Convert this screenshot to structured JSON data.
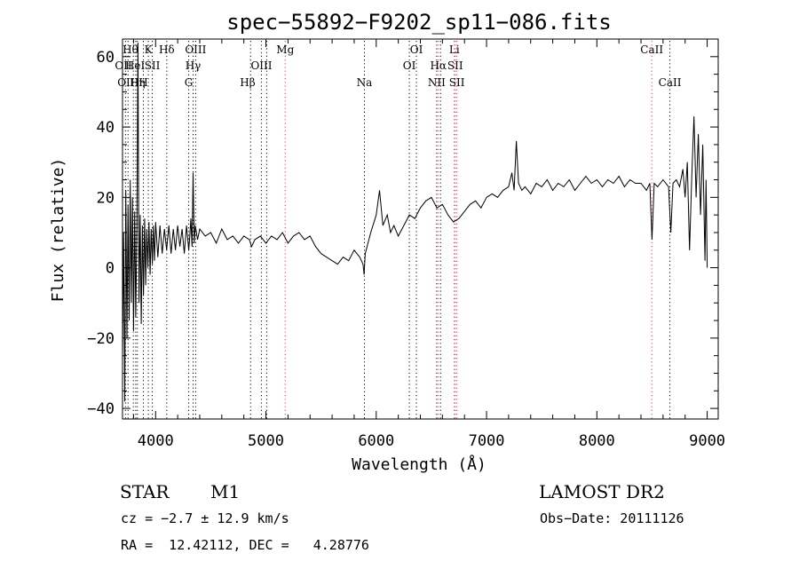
{
  "chart_data": {
    "type": "line",
    "title": "spec−55892−F9202_sp11−086.fits",
    "xlabel": "Wavelength (Å)",
    "ylabel": "Flux (relative)",
    "xlim": [
      3700,
      9100
    ],
    "ylim": [
      -43,
      65
    ],
    "xticks": [
      4000,
      5000,
      6000,
      7000,
      8000,
      9000
    ],
    "yticks": [
      -40,
      -20,
      0,
      20,
      40,
      60
    ],
    "ytick_labels": [
      "−40",
      "−20",
      "0",
      "20",
      "40",
      "60"
    ],
    "grid": false,
    "spectrum": [
      [
        3700,
        -25
      ],
      [
        3710,
        10
      ],
      [
        3720,
        -38
      ],
      [
        3730,
        22
      ],
      [
        3740,
        -20
      ],
      [
        3750,
        18
      ],
      [
        3760,
        -15
      ],
      [
        3770,
        25
      ],
      [
        3780,
        -10
      ],
      [
        3790,
        20
      ],
      [
        3800,
        -18
      ],
      [
        3810,
        16
      ],
      [
        3820,
        -14
      ],
      [
        3830,
        12
      ],
      [
        3840,
        64
      ],
      [
        3850,
        -10
      ],
      [
        3860,
        15
      ],
      [
        3870,
        -16
      ],
      [
        3880,
        12
      ],
      [
        3890,
        -8
      ],
      [
        3900,
        14
      ],
      [
        3910,
        -5
      ],
      [
        3920,
        11
      ],
      [
        3930,
        0
      ],
      [
        3940,
        13
      ],
      [
        3950,
        -2
      ],
      [
        3960,
        11
      ],
      [
        3970,
        1
      ],
      [
        3980,
        12
      ],
      [
        3990,
        2
      ],
      [
        4000,
        13
      ],
      [
        4020,
        3
      ],
      [
        4040,
        12
      ],
      [
        4060,
        4
      ],
      [
        4080,
        11
      ],
      [
        4100,
        5
      ],
      [
        4120,
        12
      ],
      [
        4140,
        4
      ],
      [
        4160,
        11
      ],
      [
        4180,
        5
      ],
      [
        4200,
        12
      ],
      [
        4220,
        6
      ],
      [
        4240,
        11
      ],
      [
        4260,
        4
      ],
      [
        4280,
        12
      ],
      [
        4300,
        5
      ],
      [
        4310,
        9
      ],
      [
        4320,
        14
      ],
      [
        4330,
        6
      ],
      [
        4340,
        27
      ],
      [
        4350,
        7
      ],
      [
        4360,
        12
      ],
      [
        4380,
        8
      ],
      [
        4400,
        11
      ],
      [
        4450,
        9
      ],
      [
        4500,
        10
      ],
      [
        4550,
        7
      ],
      [
        4600,
        11
      ],
      [
        4650,
        8
      ],
      [
        4700,
        9
      ],
      [
        4750,
        7
      ],
      [
        4800,
        9
      ],
      [
        4850,
        8
      ],
      [
        4870,
        6
      ],
      [
        4900,
        8
      ],
      [
        4950,
        9
      ],
      [
        5000,
        7
      ],
      [
        5050,
        9
      ],
      [
        5100,
        8
      ],
      [
        5150,
        10
      ],
      [
        5200,
        7
      ],
      [
        5250,
        9
      ],
      [
        5300,
        10
      ],
      [
        5350,
        8
      ],
      [
        5400,
        9
      ],
      [
        5450,
        6
      ],
      [
        5500,
        4
      ],
      [
        5550,
        3
      ],
      [
        5600,
        2
      ],
      [
        5650,
        1
      ],
      [
        5700,
        3
      ],
      [
        5750,
        2
      ],
      [
        5800,
        5
      ],
      [
        5850,
        3
      ],
      [
        5880,
        1
      ],
      [
        5890,
        -2
      ],
      [
        5900,
        4
      ],
      [
        5950,
        10
      ],
      [
        6000,
        15
      ],
      [
        6030,
        22
      ],
      [
        6060,
        12
      ],
      [
        6100,
        15
      ],
      [
        6130,
        10
      ],
      [
        6160,
        12
      ],
      [
        6200,
        9
      ],
      [
        6250,
        12
      ],
      [
        6300,
        15
      ],
      [
        6350,
        14
      ],
      [
        6400,
        17
      ],
      [
        6450,
        19
      ],
      [
        6500,
        20
      ],
      [
        6550,
        17
      ],
      [
        6600,
        18
      ],
      [
        6650,
        15
      ],
      [
        6700,
        13
      ],
      [
        6750,
        14
      ],
      [
        6800,
        16
      ],
      [
        6850,
        18
      ],
      [
        6900,
        19
      ],
      [
        6950,
        17
      ],
      [
        7000,
        20
      ],
      [
        7050,
        21
      ],
      [
        7100,
        20
      ],
      [
        7150,
        22
      ],
      [
        7200,
        23
      ],
      [
        7230,
        27
      ],
      [
        7250,
        22
      ],
      [
        7270,
        36
      ],
      [
        7290,
        24
      ],
      [
        7320,
        22
      ],
      [
        7350,
        23
      ],
      [
        7400,
        21
      ],
      [
        7450,
        24
      ],
      [
        7500,
        23
      ],
      [
        7550,
        25
      ],
      [
        7600,
        22
      ],
      [
        7650,
        24
      ],
      [
        7700,
        23
      ],
      [
        7750,
        25
      ],
      [
        7800,
        22
      ],
      [
        7850,
        24
      ],
      [
        7900,
        26
      ],
      [
        7950,
        24
      ],
      [
        8000,
        25
      ],
      [
        8050,
        23
      ],
      [
        8100,
        25
      ],
      [
        8150,
        24
      ],
      [
        8200,
        26
      ],
      [
        8250,
        23
      ],
      [
        8300,
        25
      ],
      [
        8350,
        24
      ],
      [
        8400,
        24
      ],
      [
        8450,
        22
      ],
      [
        8480,
        24
      ],
      [
        8500,
        8
      ],
      [
        8520,
        24
      ],
      [
        8550,
        23
      ],
      [
        8600,
        25
      ],
      [
        8650,
        23
      ],
      [
        8670,
        10
      ],
      [
        8690,
        24
      ],
      [
        8720,
        25
      ],
      [
        8750,
        23
      ],
      [
        8780,
        28
      ],
      [
        8800,
        20
      ],
      [
        8820,
        30
      ],
      [
        8840,
        5
      ],
      [
        8860,
        26
      ],
      [
        8880,
        43
      ],
      [
        8900,
        20
      ],
      [
        8920,
        38
      ],
      [
        8940,
        15
      ],
      [
        8960,
        35
      ],
      [
        8980,
        2
      ],
      [
        8990,
        25
      ],
      [
        9000,
        0
      ]
    ],
    "lines": [
      {
        "wl": 3727,
        "color": "#000",
        "label": "OII",
        "row": 2,
        "side": "right"
      },
      {
        "wl": 3750,
        "color": "#000",
        "label": "OII",
        "row": 3,
        "side": "right"
      },
      {
        "wl": 3798,
        "color": "#000",
        "label": "Hθ",
        "row": 1,
        "side": "right"
      },
      {
        "wl": 3820,
        "color": "#000",
        "label": "HeI",
        "row": 2,
        "side": "right"
      },
      {
        "wl": 3835,
        "color": "#000",
        "label": "Hη",
        "row": 3,
        "side": "left"
      },
      {
        "wl": 3889,
        "color": "#000",
        "label": "H",
        "row": 3,
        "side": "left"
      },
      {
        "wl": 3934,
        "color": "#000",
        "label": "K",
        "row": 1,
        "side": "left"
      },
      {
        "wl": 3970,
        "color": "#000",
        "label": "SII",
        "row": 2,
        "side": "left"
      },
      {
        "wl": 4101,
        "color": "#000",
        "label": "Hδ",
        "row": 1,
        "side": "left"
      },
      {
        "wl": 4300,
        "color": "#000",
        "label": "G",
        "row": 3,
        "side": "left"
      },
      {
        "wl": 4340,
        "color": "#000",
        "label": "Hγ",
        "row": 2,
        "side": "left"
      },
      {
        "wl": 4363,
        "color": "#000",
        "label": "OIII",
        "row": 1,
        "side": "left"
      },
      {
        "wl": 4861,
        "color": "#000",
        "label": "Hβ",
        "row": 3,
        "side": "right"
      },
      {
        "wl": 4959,
        "color": "#000",
        "label": "OIII",
        "row": 2,
        "side": "right"
      },
      {
        "wl": 5007,
        "color": "#000",
        "label": "",
        "row": 0,
        "side": "right"
      },
      {
        "wl": 5175,
        "color": "#e8384f",
        "label": "Mg",
        "row": 1,
        "side": "left"
      },
      {
        "wl": 5893,
        "color": "#000",
        "label": "Na",
        "row": 3,
        "side": "left"
      },
      {
        "wl": 6300,
        "color": "#000",
        "label": "OI",
        "row": 2,
        "side": "left"
      },
      {
        "wl": 6364,
        "color": "#000",
        "label": "OI",
        "row": 1,
        "side": "left"
      },
      {
        "wl": 6548,
        "color": "#000",
        "label": "NII",
        "row": 3,
        "side": "left"
      },
      {
        "wl": 6563,
        "color": "#e8384f",
        "label": "Hα",
        "row": 2,
        "side": "left"
      },
      {
        "wl": 6583,
        "color": "#000",
        "label": "",
        "row": 0,
        "side": "left"
      },
      {
        "wl": 6708,
        "color": "#e8384f",
        "label": "Li",
        "row": 1,
        "side": "left"
      },
      {
        "wl": 6716,
        "color": "#e8384f",
        "label": "SII",
        "row": 2,
        "side": "left"
      },
      {
        "wl": 6731,
        "color": "#e8384f",
        "label": "SII",
        "row": 3,
        "side": "left"
      },
      {
        "wl": 8498,
        "color": "#e8384f",
        "label": "CaII",
        "row": 1,
        "side": "left"
      },
      {
        "wl": 8662,
        "color": "#000",
        "label": "CaII",
        "row": 3,
        "side": "left"
      }
    ]
  },
  "info": {
    "class_label": "STAR",
    "subclass_label": "M1",
    "survey_label": "LAMOST DR2",
    "cz_text": "cz = −2.7 ± 12.9 km/s",
    "obs_date_text": "Obs−Date: 20111126",
    "radec_text": "RA =  12.42112, DEC =   4.28776"
  }
}
